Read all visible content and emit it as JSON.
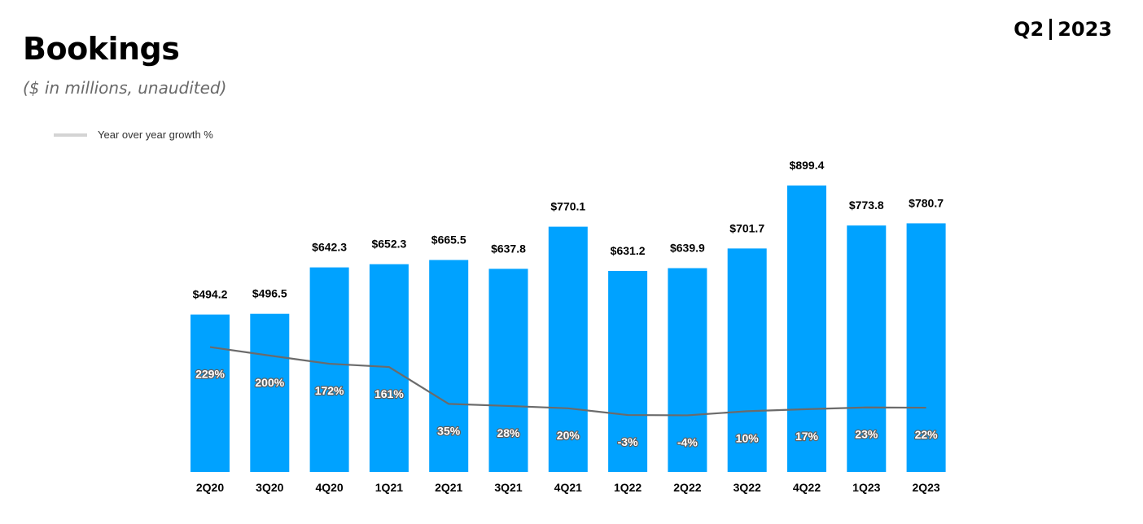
{
  "header": {
    "title": "Bookings",
    "subtitle": "($ in millions, unaudited)",
    "period_quarter": "Q2",
    "period_year": "2023"
  },
  "chart_data": {
    "type": "bar",
    "title": "Bookings",
    "subtitle": "($ in millions, unaudited)",
    "categories": [
      "2Q20",
      "3Q20",
      "4Q20",
      "1Q21",
      "2Q21",
      "3Q21",
      "4Q21",
      "1Q22",
      "2Q22",
      "3Q22",
      "4Q22",
      "1Q23",
      "2Q23"
    ],
    "series": [
      {
        "type": "bar",
        "values": [
          494.2,
          496.5,
          642.3,
          652.3,
          665.5,
          637.8,
          770.1,
          631.2,
          639.9,
          701.7,
          899.4,
          773.8,
          780.7
        ],
        "labels": [
          "$494.2",
          "$496.5",
          "$642.3",
          "$652.3",
          "$665.5",
          "$637.8",
          "$770.1",
          "$631.2",
          "$639.9",
          "$701.7",
          "$899.4",
          "$773.8",
          "$780.7"
        ],
        "color": "#00a2ff"
      },
      {
        "name": "Year over year growth %",
        "type": "line",
        "values": [
          229,
          200,
          172,
          161,
          35,
          28,
          20,
          -3,
          -4,
          10,
          17,
          23,
          22
        ],
        "labels": [
          "229%",
          "200%",
          "172%",
          "161%",
          "35%",
          "28%",
          "20%",
          "-3%",
          "-4%",
          "10%",
          "17%",
          "23%",
          "22%"
        ],
        "color": "#6b6b6b"
      }
    ],
    "ylim": [
      0,
      899.4
    ],
    "legend": {
      "position": "top-left",
      "label": "Year over year growth %",
      "color": "#d4d4d4"
    },
    "grid": false
  }
}
